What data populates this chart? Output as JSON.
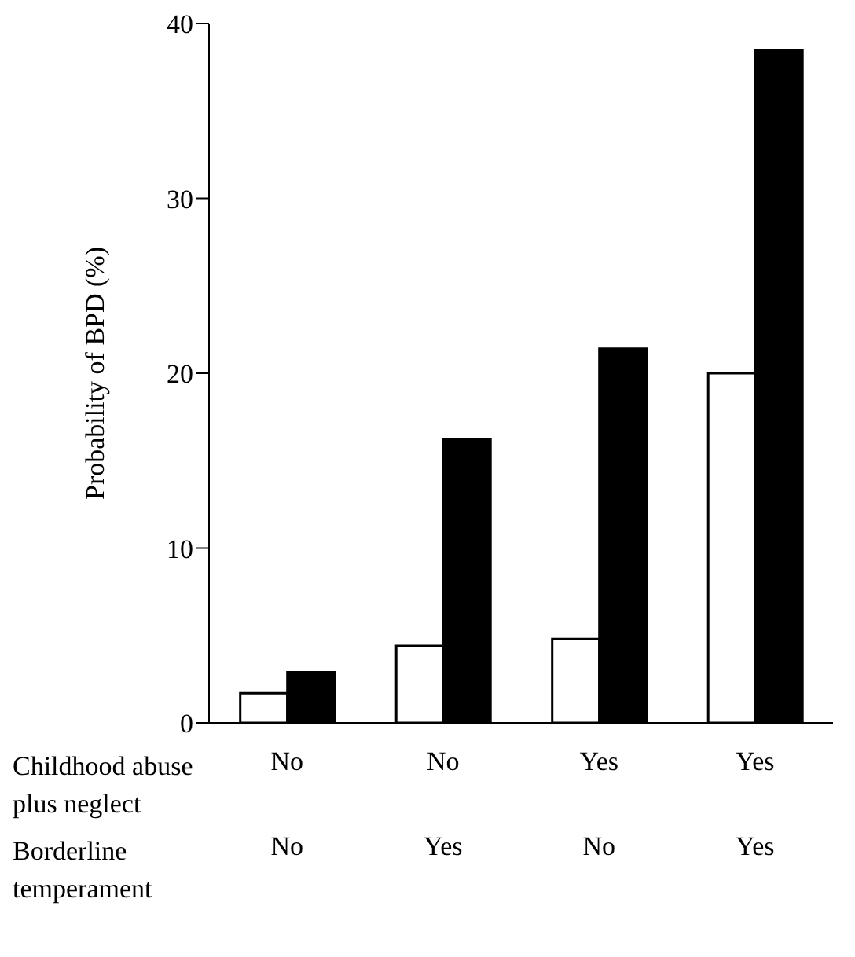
{
  "chart_data": {
    "type": "bar",
    "ylabel": "Probability of BPD (%)",
    "categories": [
      "No\nNo",
      "No\nYes",
      "Yes\nNo",
      "Yes\nYes"
    ],
    "series": [
      {
        "color": "#ffffff",
        "values": [
          1.7,
          4.4,
          4.8,
          20.0
        ]
      },
      {
        "color": "#000000",
        "values": [
          2.9,
          16.2,
          21.4,
          38.5
        ]
      }
    ],
    "ylim": [
      0,
      40
    ],
    "yticks": [
      0,
      10,
      20,
      30,
      40
    ],
    "grid": false,
    "legend": false,
    "annotations": [
      "Childhood abuse plus neglect",
      "Borderline temperament"
    ]
  }
}
